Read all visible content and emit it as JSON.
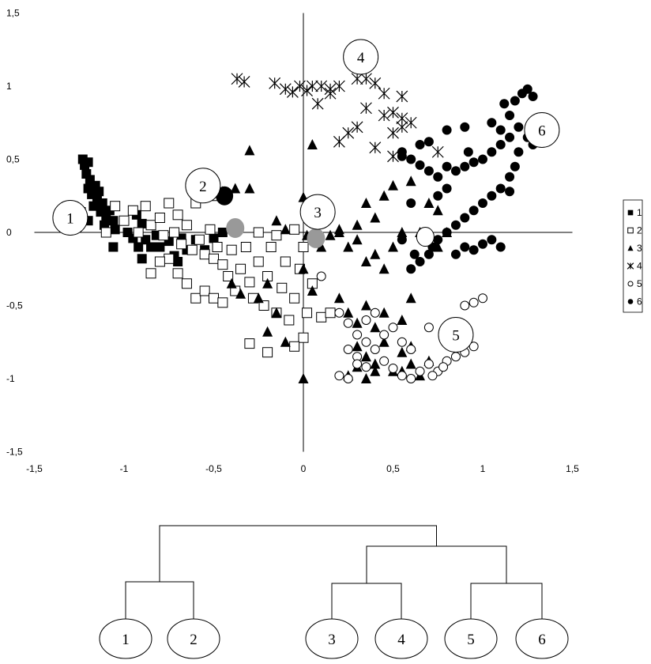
{
  "chart_data": {
    "type": "scatter",
    "xlim": [
      -1.5,
      1.5
    ],
    "ylim": [
      -1.5,
      1.5
    ],
    "xticks": [
      "-1,5",
      "-1",
      "-0,5",
      "0",
      "0,5",
      "1",
      "1,5"
    ],
    "yticks": [
      "1,5",
      "1",
      "0,5",
      "0",
      "-0,5",
      "-1",
      "-1,5"
    ],
    "grid": false,
    "legend": "right",
    "series": [
      {
        "name": "1",
        "marker": "filled-square",
        "points": [
          [
            -1.23,
            0.5
          ],
          [
            -1.22,
            0.46
          ],
          [
            -1.2,
            0.48
          ],
          [
            -1.21,
            0.4
          ],
          [
            -1.19,
            0.36
          ],
          [
            -1.2,
            0.3
          ],
          [
            -1.18,
            0.26
          ],
          [
            -1.16,
            0.32
          ],
          [
            -1.15,
            0.22
          ],
          [
            -1.17,
            0.18
          ],
          [
            -1.14,
            0.28
          ],
          [
            -1.13,
            0.14
          ],
          [
            -1.12,
            0.2
          ],
          [
            -1.1,
            0.1
          ],
          [
            -1.11,
            0.05
          ],
          [
            -1.08,
            0.15
          ],
          [
            -1.06,
            0.08
          ],
          [
            -1.05,
            0.02
          ],
          [
            -1.24,
            0.14
          ],
          [
            -1.25,
            0.06
          ],
          [
            -1.2,
            0.08
          ],
          [
            -1.06,
            -0.1
          ],
          [
            -0.98,
            0.0
          ],
          [
            -0.95,
            -0.04
          ],
          [
            -0.93,
            0.12
          ],
          [
            -0.9,
            0.06
          ],
          [
            -0.88,
            -0.05
          ],
          [
            -0.85,
            -0.1
          ],
          [
            -0.82,
            -0.02
          ],
          [
            -0.8,
            -0.1
          ],
          [
            -0.75,
            -0.06
          ],
          [
            -0.72,
            -0.16
          ],
          [
            -0.68,
            -0.04
          ],
          [
            -0.65,
            -0.12
          ],
          [
            -0.6,
            -0.05
          ],
          [
            -0.55,
            -0.12
          ],
          [
            -0.5,
            -0.04
          ],
          [
            -0.45,
            0.0
          ],
          [
            -0.7,
            -0.2
          ],
          [
            -0.9,
            -0.18
          ],
          [
            -0.92,
            -0.1
          ]
        ]
      },
      {
        "name": "2",
        "marker": "open-square",
        "points": [
          [
            -1.0,
            0.08
          ],
          [
            -0.95,
            0.15
          ],
          [
            -0.92,
            0.0
          ],
          [
            -0.88,
            0.18
          ],
          [
            -0.85,
            0.05
          ],
          [
            -0.8,
            0.1
          ],
          [
            -0.78,
            -0.02
          ],
          [
            -0.75,
            0.2
          ],
          [
            -0.72,
            0.0
          ],
          [
            -0.7,
            0.12
          ],
          [
            -0.68,
            -0.08
          ],
          [
            -0.65,
            0.05
          ],
          [
            -0.62,
            -0.12
          ],
          [
            -0.6,
            0.2
          ],
          [
            -0.58,
            -0.05
          ],
          [
            -0.55,
            -0.15
          ],
          [
            -0.52,
            0.02
          ],
          [
            -0.5,
            -0.18
          ],
          [
            -0.48,
            -0.1
          ],
          [
            -0.45,
            -0.22
          ],
          [
            -0.42,
            -0.3
          ],
          [
            -0.4,
            -0.12
          ],
          [
            -0.38,
            -0.4
          ],
          [
            -0.35,
            -0.25
          ],
          [
            -0.32,
            -0.1
          ],
          [
            -0.3,
            -0.34
          ],
          [
            -0.28,
            -0.45
          ],
          [
            -0.25,
            -0.2
          ],
          [
            -0.22,
            -0.5
          ],
          [
            -0.2,
            -0.3
          ],
          [
            -0.18,
            -0.1
          ],
          [
            -0.15,
            -0.55
          ],
          [
            -0.12,
            -0.38
          ],
          [
            -0.1,
            -0.2
          ],
          [
            -0.08,
            -0.6
          ],
          [
            -0.05,
            -0.45
          ],
          [
            -0.02,
            -0.25
          ],
          [
            0.0,
            -0.72
          ],
          [
            0.02,
            -0.55
          ],
          [
            0.05,
            -0.35
          ],
          [
            -0.05,
            -0.78
          ],
          [
            -0.2,
            -0.82
          ],
          [
            -0.3,
            -0.76
          ],
          [
            0.1,
            -0.58
          ],
          [
            0.15,
            -0.55
          ],
          [
            -0.65,
            -0.35
          ],
          [
            -0.6,
            -0.45
          ],
          [
            -0.55,
            -0.4
          ],
          [
            -0.5,
            -0.45
          ],
          [
            -0.45,
            -0.48
          ],
          [
            -0.7,
            -0.28
          ],
          [
            -0.75,
            -0.18
          ],
          [
            -0.8,
            -0.2
          ],
          [
            -0.85,
            -0.28
          ],
          [
            -0.6,
            0.33
          ],
          [
            -0.55,
            0.3
          ],
          [
            -0.5,
            0.25
          ],
          [
            -1.05,
            0.18
          ],
          [
            -1.1,
            0.0
          ],
          [
            -0.05,
            0.02
          ],
          [
            -0.15,
            -0.02
          ],
          [
            0.0,
            -0.1
          ],
          [
            -0.25,
            0.0
          ]
        ]
      },
      {
        "name": "3",
        "marker": "filled-triangle",
        "points": [
          [
            -0.3,
            0.56
          ],
          [
            -0.45,
            0.28
          ],
          [
            -0.38,
            0.3
          ],
          [
            -0.3,
            0.3
          ],
          [
            0.0,
            0.24
          ],
          [
            -0.15,
            0.08
          ],
          [
            -0.1,
            0.02
          ],
          [
            0.05,
            0.6
          ],
          [
            0.1,
            0.15
          ],
          [
            0.2,
            0.0
          ],
          [
            0.25,
            -0.1
          ],
          [
            0.3,
            0.05
          ],
          [
            0.35,
            0.2
          ],
          [
            0.4,
            0.1
          ],
          [
            0.45,
            0.25
          ],
          [
            0.5,
            0.32
          ],
          [
            0.55,
            0.0
          ],
          [
            0.6,
            0.35
          ],
          [
            0.5,
            -0.1
          ],
          [
            0.4,
            -0.15
          ],
          [
            0.35,
            -0.2
          ],
          [
            0.3,
            -0.05
          ],
          [
            0.45,
            -0.25
          ],
          [
            0.2,
            -0.45
          ],
          [
            0.25,
            -0.55
          ],
          [
            0.3,
            -0.62
          ],
          [
            0.35,
            -0.5
          ],
          [
            0.4,
            -0.65
          ],
          [
            0.3,
            -0.78
          ],
          [
            0.35,
            -0.85
          ],
          [
            0.4,
            -0.9
          ],
          [
            0.45,
            -0.75
          ],
          [
            0.5,
            -0.95
          ],
          [
            0.55,
            -0.82
          ],
          [
            0.6,
            -0.9
          ],
          [
            0.65,
            -0.98
          ],
          [
            0.7,
            -0.88
          ],
          [
            0.3,
            -0.92
          ],
          [
            0.35,
            -1.0
          ],
          [
            0.4,
            -0.95
          ],
          [
            0.25,
            -0.98
          ],
          [
            0.0,
            -1.0
          ],
          [
            0.6,
            -0.45
          ],
          [
            0.55,
            -0.6
          ],
          [
            0.45,
            -0.55
          ],
          [
            0.65,
            0.0
          ],
          [
            0.7,
            0.2
          ],
          [
            0.75,
            0.15
          ],
          [
            0.8,
            0.0
          ],
          [
            0.75,
            -0.1
          ],
          [
            0.2,
            0.02
          ],
          [
            0.15,
            -0.02
          ],
          [
            -0.2,
            -0.35
          ],
          [
            -0.25,
            -0.45
          ],
          [
            -0.15,
            -0.55
          ],
          [
            -0.2,
            -0.68
          ],
          [
            -0.1,
            -0.75
          ],
          [
            0.02,
            -0.02
          ],
          [
            0.1,
            -0.1
          ],
          [
            -0.35,
            -0.42
          ],
          [
            -0.4,
            -0.35
          ],
          [
            0.0,
            -0.25
          ],
          [
            0.05,
            -0.4
          ],
          [
            0.6,
            -0.78
          ],
          [
            0.55,
            -0.95
          ]
        ]
      },
      {
        "name": "4",
        "marker": "asterisk",
        "points": [
          [
            -0.37,
            1.05
          ],
          [
            -0.33,
            1.03
          ],
          [
            -0.16,
            1.02
          ],
          [
            -0.1,
            0.98
          ],
          [
            -0.06,
            0.96
          ],
          [
            -0.02,
            1.0
          ],
          [
            0.02,
            0.97
          ],
          [
            0.05,
            1.0
          ],
          [
            0.1,
            1.0
          ],
          [
            0.15,
            0.98
          ],
          [
            0.2,
            1.0
          ],
          [
            0.08,
            0.88
          ],
          [
            0.15,
            0.95
          ],
          [
            0.3,
            1.05
          ],
          [
            0.35,
            1.05
          ],
          [
            0.4,
            1.02
          ],
          [
            0.45,
            0.95
          ],
          [
            0.55,
            0.93
          ],
          [
            0.45,
            0.8
          ],
          [
            0.5,
            0.82
          ],
          [
            0.55,
            0.78
          ],
          [
            0.6,
            0.75
          ],
          [
            0.35,
            0.85
          ],
          [
            0.3,
            0.72
          ],
          [
            0.25,
            0.68
          ],
          [
            0.2,
            0.62
          ],
          [
            0.4,
            0.58
          ],
          [
            0.5,
            0.52
          ],
          [
            0.55,
            0.72
          ],
          [
            0.5,
            0.68
          ],
          [
            0.75,
            0.55
          ]
        ]
      },
      {
        "name": "5",
        "marker": "open-circle",
        "points": [
          [
            0.1,
            -0.3
          ],
          [
            0.2,
            -0.55
          ],
          [
            0.25,
            -0.62
          ],
          [
            0.3,
            -0.7
          ],
          [
            0.35,
            -0.6
          ],
          [
            0.4,
            -0.55
          ],
          [
            0.45,
            -0.7
          ],
          [
            0.5,
            -0.65
          ],
          [
            0.55,
            -0.75
          ],
          [
            0.6,
            -0.8
          ],
          [
            0.25,
            -0.8
          ],
          [
            0.3,
            -0.85
          ],
          [
            0.35,
            -0.92
          ],
          [
            0.4,
            -0.8
          ],
          [
            0.45,
            -0.88
          ],
          [
            0.5,
            -0.93
          ],
          [
            0.55,
            -0.98
          ],
          [
            0.6,
            -1.0
          ],
          [
            0.2,
            -0.98
          ],
          [
            0.25,
            -1.0
          ],
          [
            0.3,
            -0.9
          ],
          [
            0.7,
            -0.9
          ],
          [
            0.75,
            -0.95
          ],
          [
            0.8,
            -0.88
          ],
          [
            0.85,
            -0.85
          ],
          [
            0.9,
            -0.82
          ],
          [
            0.95,
            -0.78
          ],
          [
            0.7,
            -0.65
          ],
          [
            0.9,
            -0.5
          ],
          [
            0.95,
            -0.48
          ],
          [
            1.0,
            -0.45
          ],
          [
            0.65,
            -0.95
          ],
          [
            0.72,
            -0.98
          ],
          [
            0.78,
            -0.92
          ],
          [
            0.35,
            -0.75
          ]
        ]
      },
      {
        "name": "6",
        "marker": "filled-circle",
        "points": [
          [
            1.25,
            0.98
          ],
          [
            1.22,
            0.95
          ],
          [
            1.28,
            0.93
          ],
          [
            1.18,
            0.9
          ],
          [
            1.12,
            0.88
          ],
          [
            1.15,
            0.8
          ],
          [
            1.2,
            0.72
          ],
          [
            1.25,
            0.65
          ],
          [
            1.28,
            0.6
          ],
          [
            1.1,
            0.6
          ],
          [
            1.05,
            0.55
          ],
          [
            1.0,
            0.5
          ],
          [
            0.95,
            0.48
          ],
          [
            0.9,
            0.45
          ],
          [
            0.85,
            0.42
          ],
          [
            0.8,
            0.45
          ],
          [
            0.75,
            0.38
          ],
          [
            0.7,
            0.42
          ],
          [
            0.65,
            0.46
          ],
          [
            0.6,
            0.5
          ],
          [
            0.55,
            0.55
          ],
          [
            0.65,
            0.6
          ],
          [
            0.7,
            0.62
          ],
          [
            0.8,
            0.7
          ],
          [
            0.9,
            0.72
          ],
          [
            1.05,
            0.75
          ],
          [
            1.1,
            0.7
          ],
          [
            1.15,
            0.65
          ],
          [
            1.2,
            0.55
          ],
          [
            1.18,
            0.45
          ],
          [
            1.15,
            0.38
          ],
          [
            1.1,
            0.3
          ],
          [
            1.05,
            0.25
          ],
          [
            1.0,
            0.2
          ],
          [
            0.95,
            0.15
          ],
          [
            0.9,
            0.1
          ],
          [
            0.85,
            0.05
          ],
          [
            0.8,
            0.0
          ],
          [
            0.75,
            -0.05
          ],
          [
            0.7,
            -0.15
          ],
          [
            0.65,
            -0.2
          ],
          [
            0.6,
            -0.25
          ],
          [
            0.55,
            -0.05
          ],
          [
            0.85,
            -0.15
          ],
          [
            0.9,
            -0.1
          ],
          [
            0.95,
            -0.12
          ],
          [
            1.0,
            -0.08
          ],
          [
            1.05,
            -0.05
          ],
          [
            1.1,
            -0.1
          ],
          [
            1.15,
            0.28
          ],
          [
            0.6,
            0.2
          ],
          [
            0.75,
            0.25
          ],
          [
            0.8,
            0.3
          ],
          [
            0.92,
            0.55
          ],
          [
            0.55,
            0.52
          ],
          [
            0.72,
            -0.1
          ],
          [
            0.62,
            -0.15
          ]
        ]
      }
    ],
    "centroids": {
      "grey": [
        [
          -0.38,
          0.03
        ],
        [
          0.07,
          -0.04
        ]
      ],
      "black": [
        [
          -0.44,
          0.25
        ]
      ],
      "white": [
        [
          0.68,
          -0.03
        ]
      ]
    },
    "cluster_labels": [
      {
        "text": "1",
        "x": -1.3,
        "y": 0.1
      },
      {
        "text": "2",
        "x": -0.56,
        "y": 0.32
      },
      {
        "text": "3",
        "x": 0.08,
        "y": 0.14
      },
      {
        "text": "4",
        "x": 0.32,
        "y": 1.2
      },
      {
        "text": "5",
        "x": 0.85,
        "y": -0.7
      },
      {
        "text": "6",
        "x": 1.33,
        "y": 0.7
      }
    ]
  },
  "dendrogram": {
    "leaves": [
      "1",
      "2",
      "3",
      "4",
      "5",
      "6"
    ]
  }
}
